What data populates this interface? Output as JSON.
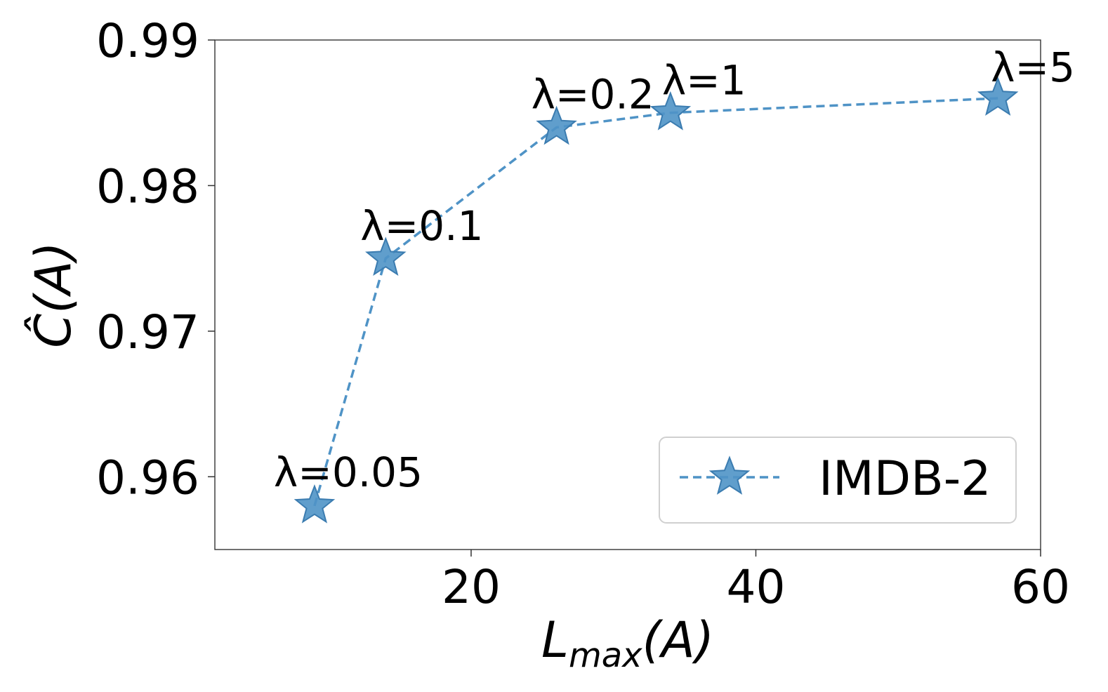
{
  "chart_data": {
    "type": "line",
    "xlabel": "L_max(A)",
    "xlabel_main": "L",
    "xlabel_sub": "max",
    "xlabel_arg": "(A)",
    "ylabel": "Ĉ(A)",
    "xlim": [
      2,
      60
    ],
    "ylim": [
      0.955,
      0.99
    ],
    "xticks": [
      20,
      40,
      60
    ],
    "yticks": [
      0.96,
      0.97,
      0.98,
      0.99
    ],
    "xtick_labels": [
      "20",
      "40",
      "60"
    ],
    "ytick_labels": [
      "0.96",
      "0.97",
      "0.98",
      "0.99"
    ],
    "grid": false,
    "legend_position": "lower-right",
    "series": [
      {
        "name": "IMDB-2",
        "color": "#4f93c6",
        "line_style": "dashed",
        "marker": "star-icon",
        "x": [
          9,
          14,
          26,
          34,
          57
        ],
        "y": [
          0.958,
          0.975,
          0.984,
          0.985,
          0.986
        ],
        "labels": [
          "λ=0.05",
          "λ=0.1",
          "λ=0.2",
          "λ=1",
          "λ=5"
        ]
      }
    ]
  }
}
